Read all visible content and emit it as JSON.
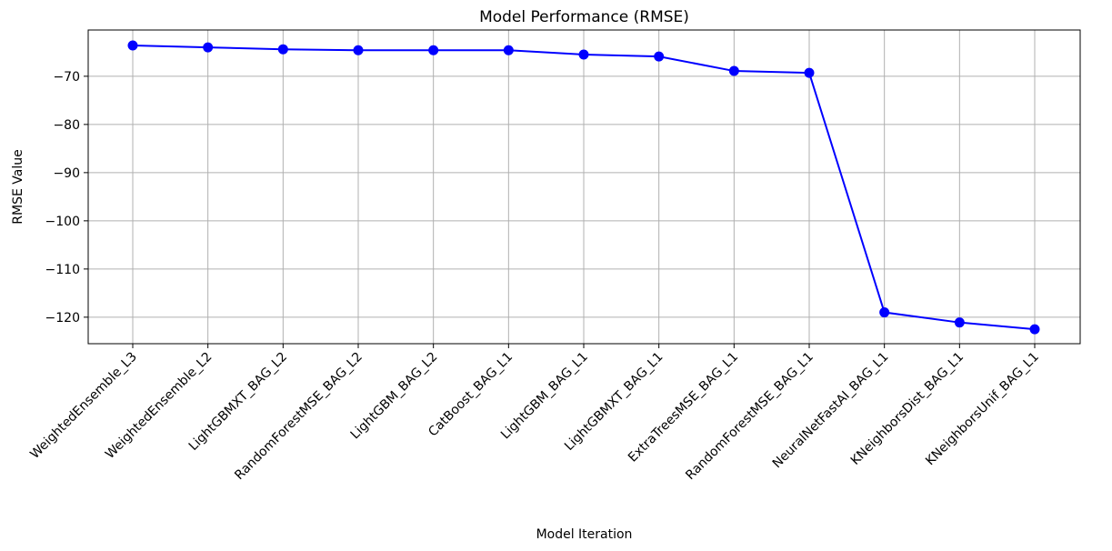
{
  "chart_data": {
    "type": "line",
    "title": "Model Performance (RMSE)",
    "xlabel": "Model Iteration",
    "ylabel": "RMSE Value",
    "categories": [
      "WeightedEnsemble_L3",
      "WeightedEnsemble_L2",
      "LightGBMXT_BAG_L2",
      "RandomForestMSE_BAG_L2",
      "LightGBM_BAG_L2",
      "CatBoost_BAG_L1",
      "LightGBM_BAG_L1",
      "LightGBMXT_BAG_L1",
      "ExtraTreesMSE_BAG_L1",
      "RandomForestMSE_BAG_L1",
      "NeuralNetFastAI_BAG_L1",
      "KNeighborsDist_BAG_L1",
      "KNeighborsUnif_BAG_L1"
    ],
    "series": [
      {
        "values": [
          -63.6,
          -64.0,
          -64.4,
          -64.6,
          -64.6,
          -64.6,
          -65.5,
          -65.9,
          -68.9,
          -69.3,
          -119.0,
          -121.1,
          -122.5
        ]
      }
    ],
    "yticks": [
      -70,
      -80,
      -90,
      -100,
      -110,
      -120
    ],
    "ylim": [
      -125.5,
      -60.4
    ],
    "grid": true,
    "line_color": "#0000ff",
    "marker": "circle"
  }
}
